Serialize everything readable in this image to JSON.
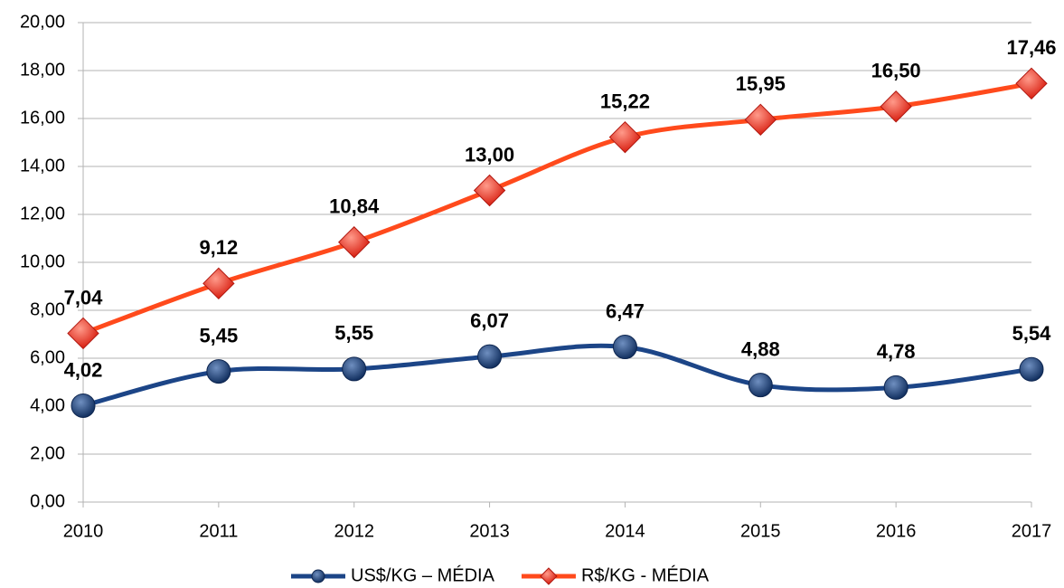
{
  "chart_data": {
    "type": "line",
    "categories": [
      "2010",
      "2011",
      "2012",
      "2013",
      "2014",
      "2015",
      "2016",
      "2017"
    ],
    "series": [
      {
        "name": "US$/KG – MÉDIA",
        "color": "#1c4587",
        "marker": "circle",
        "values": [
          4.02,
          5.45,
          5.55,
          6.07,
          6.47,
          4.88,
          4.78,
          5.54
        ],
        "value_labels": [
          "4,02",
          "5,45",
          "5,55",
          "6,07",
          "6,47",
          "4,88",
          "4,78",
          "5,54"
        ]
      },
      {
        "name": "R$/KG - MÉDIA",
        "color": "#ff4a1c",
        "marker": "diamond",
        "values": [
          7.04,
          9.12,
          10.84,
          13.0,
          15.22,
          15.95,
          16.5,
          17.46
        ],
        "value_labels": [
          "7,04",
          "9,12",
          "10,84",
          "13,00",
          "15,22",
          "15,95",
          "16,50",
          "17,46"
        ]
      }
    ],
    "ylim": [
      0,
      20
    ],
    "yticks": [
      {
        "value": 0,
        "label": "0,00"
      },
      {
        "value": 2,
        "label": "2,00"
      },
      {
        "value": 4,
        "label": "4,00"
      },
      {
        "value": 6,
        "label": "6,00"
      },
      {
        "value": 8,
        "label": "8,00"
      },
      {
        "value": 10,
        "label": "10,00"
      },
      {
        "value": 12,
        "label": "12,00"
      },
      {
        "value": 14,
        "label": "14,00"
      },
      {
        "value": 16,
        "label": "16,00"
      },
      {
        "value": 18,
        "label": "18,00"
      },
      {
        "value": 20,
        "label": "20,00"
      }
    ],
    "grid": true,
    "smooth": true,
    "legend": "bottom"
  }
}
